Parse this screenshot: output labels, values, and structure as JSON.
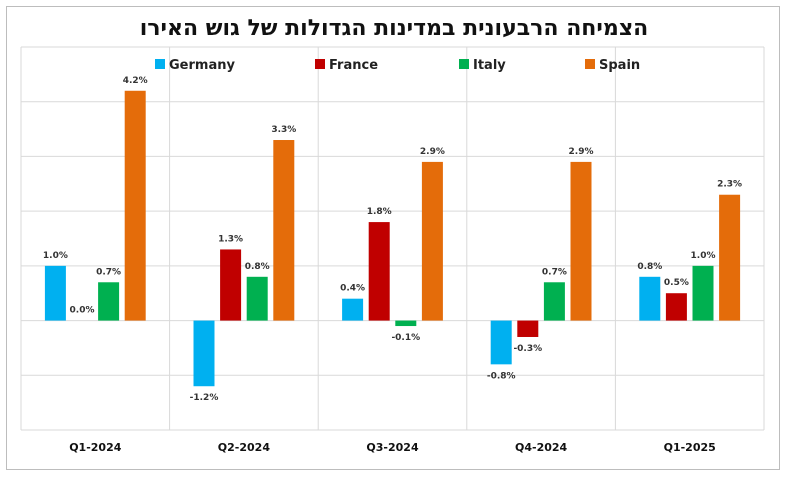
{
  "chart_data": {
    "type": "bar",
    "title": "הצמיחה הרבעונית במדינות הגדולות של גוש האירו",
    "categories": [
      "Q1-2024",
      "Q2-2024",
      "Q3-2024",
      "Q4-2024",
      "Q1-2025"
    ],
    "series": [
      {
        "name": "Germany",
        "color": "#00b0f0",
        "values": [
          1.0,
          -1.2,
          0.4,
          -0.8,
          0.8
        ],
        "labels": [
          "1.0%",
          "-1.2%",
          "0.4%",
          "-0.8%",
          "0.8%"
        ]
      },
      {
        "name": "France",
        "color": "#c00000",
        "values": [
          0.0,
          1.3,
          1.8,
          -0.3,
          0.5
        ],
        "labels": [
          "0.0%",
          "1.3%",
          "1.8%",
          "-0.3%",
          "0.5%"
        ]
      },
      {
        "name": "Italy",
        "color": "#00b050",
        "values": [
          0.7,
          0.8,
          -0.1,
          0.7,
          1.0
        ],
        "labels": [
          "0.7%",
          "0.8%",
          "-0.1%",
          "0.7%",
          "1.0%"
        ]
      },
      {
        "name": "Spain",
        "color": "#e46c0a",
        "values": [
          4.2,
          3.3,
          2.9,
          2.9,
          2.3
        ],
        "labels": [
          "4.2%",
          "3.3%",
          "2.9%",
          "2.9%",
          "2.3%"
        ]
      }
    ],
    "ylim": [
      -2.0,
      5.0
    ],
    "grid": true,
    "legend_position": "top"
  }
}
